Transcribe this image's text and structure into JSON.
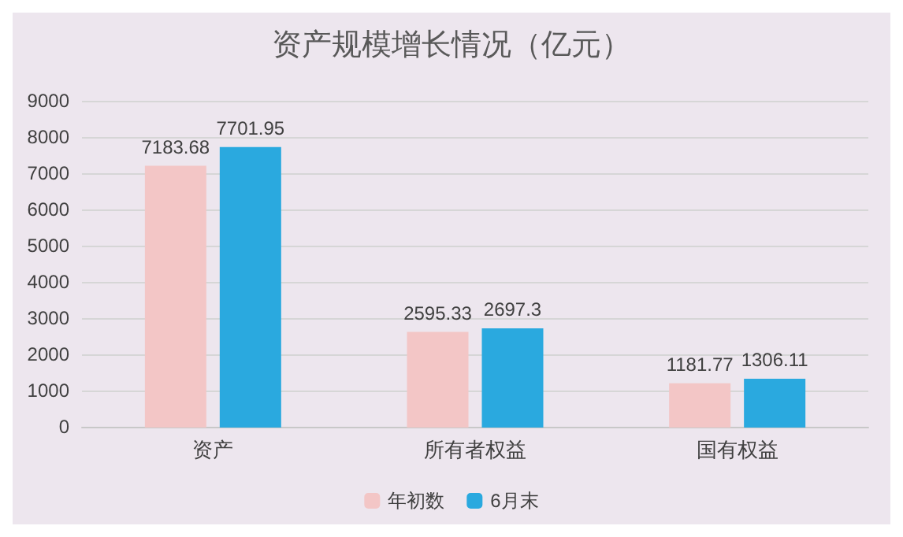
{
  "chart_data": {
    "type": "bar",
    "title": "资产规模增长情况（亿元）",
    "categories": [
      "资产",
      "所有者权益",
      "国有权益"
    ],
    "series": [
      {
        "name": "年初数",
        "color": "#f3c6c6",
        "values": [
          7183.68,
          2595.33,
          1181.77
        ]
      },
      {
        "name": "6月末",
        "color": "#2aa9df",
        "values": [
          7701.95,
          2697.3,
          1306.11
        ]
      }
    ],
    "ylim": [
      0,
      9000
    ],
    "yticks": [
      0,
      1000,
      2000,
      3000,
      4000,
      5000,
      6000,
      7000,
      8000,
      9000
    ],
    "grid": "y",
    "legend": "bottom",
    "data_labels": true
  }
}
